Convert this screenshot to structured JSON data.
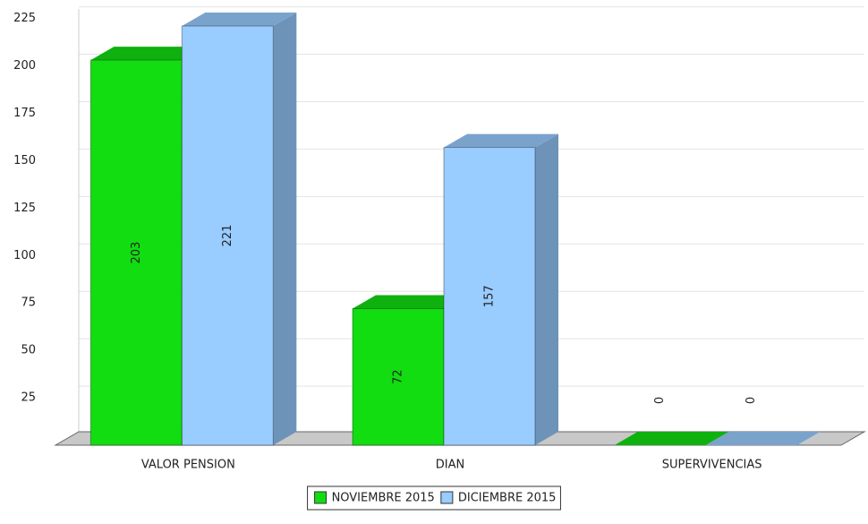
{
  "chart_data": {
    "type": "bar",
    "categories": [
      "VALOR PENSION",
      "DIAN",
      "SUPERVIVENCIAS"
    ],
    "series": [
      {
        "name": "NOVIEMBRE 2015",
        "color": "#11dd11",
        "values": [
          203,
          72,
          0
        ]
      },
      {
        "name": "DICIEMBRE 2015",
        "color": "#99ccff",
        "values": [
          221,
          157,
          0
        ]
      }
    ],
    "ylim": [
      0,
      230
    ],
    "yticks": [
      25,
      50,
      75,
      100,
      125,
      150,
      175,
      200,
      225
    ],
    "grid": true,
    "legend": "bottom"
  }
}
